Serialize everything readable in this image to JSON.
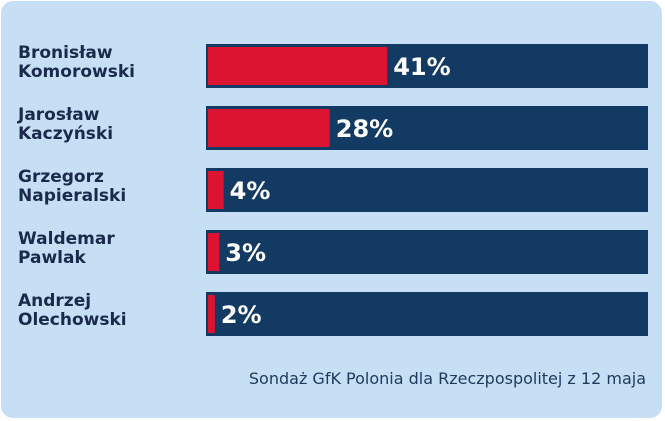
{
  "chart_data": {
    "type": "bar",
    "orientation": "horizontal",
    "categories": [
      [
        "Bronisław",
        "Komorowski"
      ],
      [
        "Jarosław",
        "Kaczyński"
      ],
      [
        "Grzegorz",
        "Napieralski"
      ],
      [
        "Waldemar",
        "Pawlak"
      ],
      [
        "Andrzej",
        "Olechowski"
      ]
    ],
    "values": [
      41,
      28,
      4,
      3,
      2
    ],
    "value_labels": [
      "41%",
      "28%",
      "4%",
      "3%",
      "2%"
    ],
    "xlim": [
      0,
      100
    ],
    "grid": false,
    "colors": {
      "bar": "#dc1432",
      "track": "#133a62",
      "background": "#c7dff5"
    }
  },
  "source_note": "Sondaż GfK Polonia dla Rzeczpospolitej z 12 maja"
}
